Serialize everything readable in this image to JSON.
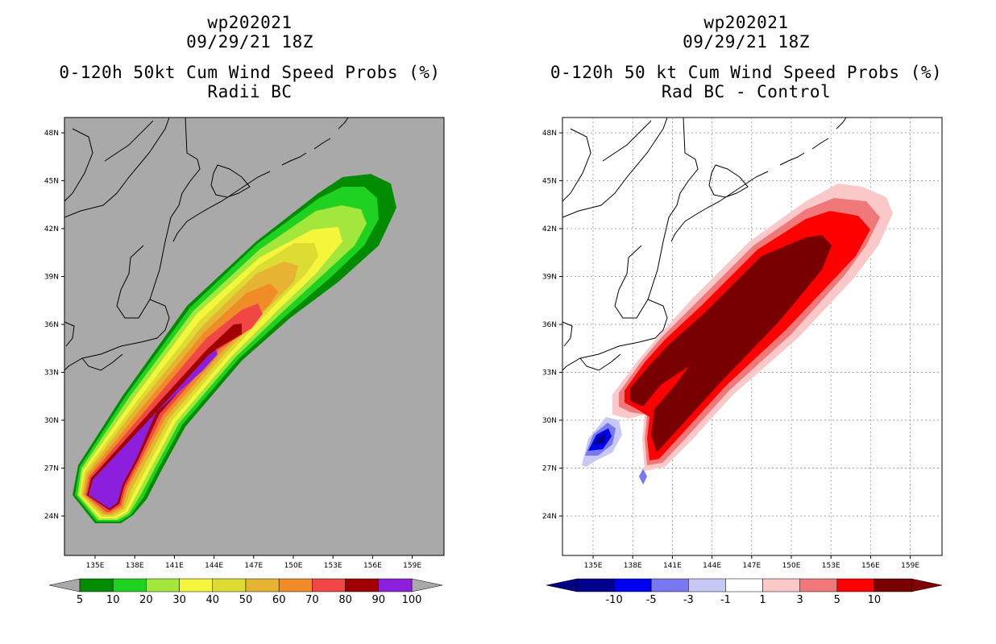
{
  "left_panel": {
    "storm_id": "wp202021",
    "datetime": "09/29/21 18Z",
    "title": "0-120h 50kt Cum Wind Speed Probs (%)",
    "subtitle": "Radii BC",
    "background_color": "#a9a9a9",
    "lat_ticks": [
      "24N",
      "27N",
      "30N",
      "33N",
      "36N",
      "39N",
      "42N",
      "45N",
      "48N"
    ],
    "lon_ticks": [
      "135E",
      "138E",
      "141E",
      "144E",
      "147E",
      "150E",
      "153E",
      "156E",
      "159E"
    ],
    "colorbar": {
      "colors": [
        "#008b00",
        "#1fd21f",
        "#a3e63c",
        "#f5f53c",
        "#dcdc32",
        "#e6b432",
        "#f08c28",
        "#f04646",
        "#a00000",
        "#8c1fdc"
      ],
      "labels": [
        "5",
        "10",
        "20",
        "30",
        "40",
        "50",
        "60",
        "70",
        "80",
        "90",
        "100"
      ]
    }
  },
  "right_panel": {
    "storm_id": "wp202021",
    "datetime": "09/29/21 18Z",
    "title": "0-120h 50 kt Cum Wind Speed Probs (%)",
    "subtitle": "Rad BC - Control",
    "background_color": "#ffffff",
    "lat_ticks": [
      "24N",
      "27N",
      "30N",
      "33N",
      "36N",
      "39N",
      "42N",
      "45N",
      "48N"
    ],
    "lon_ticks": [
      "135E",
      "138E",
      "141E",
      "144E",
      "147E",
      "150E",
      "153E",
      "156E",
      "159E"
    ],
    "colorbar": {
      "colors": [
        "#00008c",
        "#0000f0",
        "#7878f0",
        "#c8c8f5",
        "#ffffff",
        "#fac8c8",
        "#f07878",
        "#ff0000",
        "#780000"
      ],
      "labels": [
        "-10",
        "-5",
        "-3",
        "-1",
        "1",
        "3",
        "5",
        "10"
      ]
    }
  }
}
